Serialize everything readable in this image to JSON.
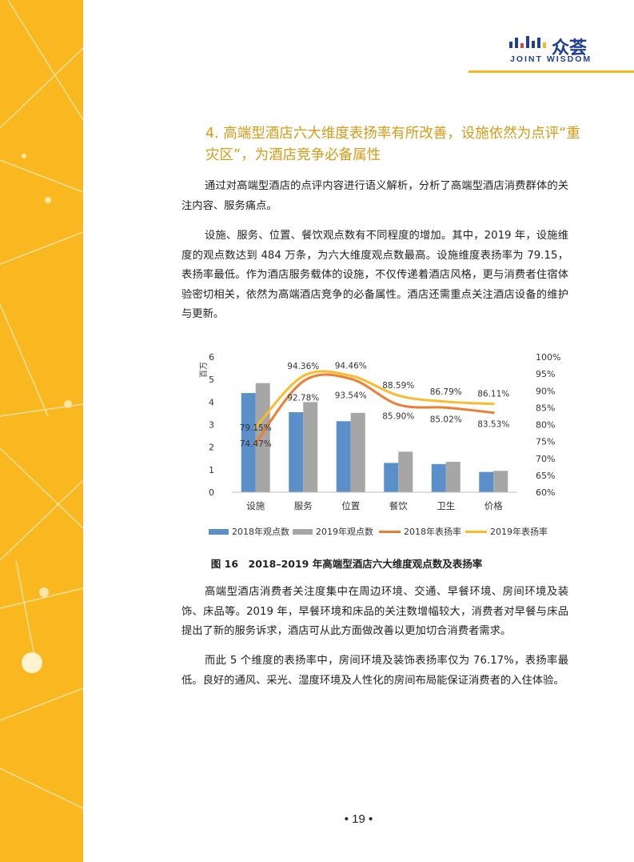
{
  "brand": {
    "logo_cn": "众荟",
    "logo_en": "JOINT WISDOM",
    "accent": "#f9b820",
    "brand_color": "#1f3f97"
  },
  "section_heading": "4. 高端型酒店六大维度表扬率有所改善，设施依然为点评“重灾区”，为酒店竞争必备属性",
  "paragraphs": {
    "p1": "通过对高端型酒店的点评内容进行语义解析，分析了高端型酒店消费群体的关注内容、服务痛点。",
    "p2": "设施、服务、位置、餐饮观点数有不同程度的增加。其中，2019 年，设施维度的观点数达到 484 万条，为六大维度观点数最高。设施维度表扬率为 79.15，表扬率最低。作为酒店服务载体的设施，不仅传递着酒店风格，更与消费者住宿体验密切相关，依然为高端酒店竞争的必备属性。酒店还需重点关注酒店设备的维护与更新。",
    "p3": "高端型酒店消费者关注度集中在周边环境、交通、早餐环境、房间环境及装饰、床品等。2019 年，早餐环境和床品的关注数增幅较大，消费者对早餐与床品提出了新的服务诉求，酒店可从此方面做改善以更加切合消费者需求。",
    "p4": "而此 5 个维度的表扬率中，房间环境及装饰表扬率仅为 76.17%，表扬率最低。良好的通风、采光、湿度环境及人性化的房间布局能保证消费者的入住体验。"
  },
  "figure_caption": "图 16　2018–2019 年高端型酒店六大维度观点数及表扬率",
  "page_number": "• 19 •",
  "chart_data": {
    "type": "bar",
    "categories": [
      "设施",
      "服务",
      "位置",
      "餐饮",
      "卫生",
      "价格"
    ],
    "ylabel": "百万",
    "ylim": [
      0,
      6
    ],
    "yticks": [
      "0",
      "1",
      "2",
      "3",
      "4",
      "5",
      "6"
    ],
    "y2lim": [
      60,
      100
    ],
    "y2ticks": [
      "60%",
      "65%",
      "70%",
      "75%",
      "80%",
      "85%",
      "90%",
      "95%",
      "100%"
    ],
    "series": [
      {
        "name": "2018年观点数",
        "kind": "bar",
        "axis": "left",
        "color": "#5b8fc9",
        "values": [
          4.4,
          3.55,
          3.15,
          1.3,
          1.25,
          0.9
        ]
      },
      {
        "name": "2019年观点数",
        "kind": "bar",
        "axis": "left",
        "color": "#a6a6a6",
        "values": [
          4.84,
          4.0,
          3.52,
          1.8,
          1.35,
          0.95
        ]
      },
      {
        "name": "2018年表扬率",
        "kind": "line",
        "axis": "right",
        "color": "#ed7d31",
        "values": [
          74.47,
          92.78,
          93.54,
          85.9,
          85.02,
          83.53
        ],
        "labels": [
          "74.47%",
          "92.78%",
          "93.54%",
          "85.90%",
          "85.02%",
          "83.53%"
        ]
      },
      {
        "name": "2019年表扬率",
        "kind": "line",
        "axis": "right",
        "color": "#fbbb2c",
        "values": [
          79.15,
          94.36,
          94.46,
          88.59,
          86.79,
          86.11
        ],
        "labels": [
          "79.15%",
          "94.36%",
          "94.46%",
          "88.59%",
          "86.79%",
          "86.11%"
        ]
      }
    ],
    "grid": false,
    "legend": "bottom"
  }
}
